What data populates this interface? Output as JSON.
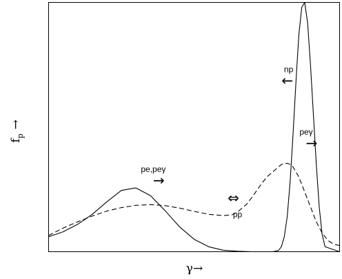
{
  "chart_data": {
    "type": "line",
    "title": "",
    "xlabel": "γ→",
    "ylabel": "f_p →",
    "ylabel_base": "f",
    "ylabel_sub": "p",
    "ylabel_arrow": "→",
    "xlim": [
      0,
      100
    ],
    "ylim": [
      0,
      1
    ],
    "grid": false,
    "legend": "none",
    "series": [
      {
        "style": "solid",
        "x": [
          0,
          5,
          10,
          15,
          20,
          25,
          30,
          35,
          40,
          45,
          50,
          55,
          60,
          65,
          70,
          75,
          77,
          79,
          80,
          81,
          82,
          83,
          84,
          85,
          86,
          87,
          88,
          89,
          90,
          91,
          92,
          93,
          94,
          95,
          100
        ],
        "y": [
          0.06,
          0.08,
          0.11,
          0.15,
          0.2,
          0.246,
          0.256,
          0.225,
          0.165,
          0.1,
          0.05,
          0.02,
          0.006,
          0.002,
          0.0,
          0.0,
          0.0,
          0.005,
          0.02,
          0.06,
          0.14,
          0.28,
          0.47,
          0.68,
          0.87,
          0.98,
          1.0,
          0.92,
          0.75,
          0.55,
          0.35,
          0.18,
          0.07,
          0.02,
          0.0
        ]
      },
      {
        "style": "dashed",
        "x": [
          0,
          5,
          10,
          15,
          20,
          25,
          30,
          35,
          40,
          45,
          50,
          55,
          60,
          63,
          65,
          68,
          70,
          73,
          75,
          78,
          80,
          82,
          83,
          84,
          86,
          88,
          90,
          92,
          94,
          96,
          98,
          100
        ],
        "y": [
          0.065,
          0.095,
          0.12,
          0.143,
          0.163,
          0.177,
          0.186,
          0.189,
          0.185,
          0.175,
          0.162,
          0.15,
          0.145,
          0.148,
          0.16,
          0.19,
          0.22,
          0.27,
          0.3,
          0.33,
          0.35,
          0.355,
          0.35,
          0.34,
          0.3,
          0.24,
          0.18,
          0.12,
          0.075,
          0.045,
          0.03,
          0.025
        ]
      }
    ],
    "annotations": [
      {
        "text": "pe,peγ",
        "arrow": "→",
        "x": 36,
        "y": 0.32
      },
      {
        "text": "pp",
        "arrow": "⇔",
        "x": 63.5,
        "y": 0.2
      },
      {
        "text": "np",
        "arrow": "←",
        "x": 82.5,
        "y": 0.72
      },
      {
        "text": "peγ",
        "arrow": "→",
        "x": 88.5,
        "y": 0.47
      }
    ]
  }
}
